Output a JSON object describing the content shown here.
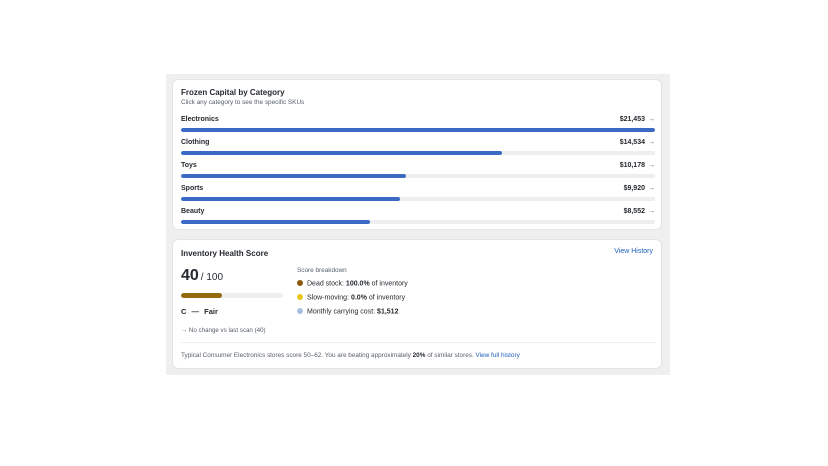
{
  "frozen": {
    "title": "Frozen Capital by Category",
    "subtitle": "Click any category to see the specific SKUs",
    "arrow": "→",
    "accent_color": "#3b6ac4",
    "categories": [
      {
        "name": "Electronics",
        "value": "$21,453",
        "amount": 21453
      },
      {
        "name": "Clothing",
        "value": "$14,534",
        "amount": 14534
      },
      {
        "name": "Toys",
        "value": "$10,178",
        "amount": 10178
      },
      {
        "name": "Sports",
        "value": "$9,920",
        "amount": 9920
      },
      {
        "name": "Beauty",
        "value": "$8,552",
        "amount": 8552
      }
    ]
  },
  "health": {
    "title": "Inventory Health Score",
    "view_history": "View History",
    "score": "40",
    "score_max": "/ 100",
    "score_fraction": 0.4,
    "score_color": "#946a0b",
    "grade": "C",
    "grade_sep": "—",
    "grade_label": "Fair",
    "no_change": "→ No change vs last scan (40)",
    "breakdown_title": "Score breakdown",
    "breakdown": [
      {
        "label": "Dead stock:",
        "value": "100.0%",
        "suffix": "of inventory",
        "color": "#8a5a0a"
      },
      {
        "label": "Slow-moving:",
        "value": "0.0%",
        "suffix": "of inventory",
        "color": "#e6c619"
      },
      {
        "label": "Monthly carrying cost:",
        "value": "$1,512",
        "suffix": "",
        "color": "#a9bfe0"
      }
    ],
    "footer_prefix": "Typical Consumer Electronics stores score 50–62. You are beating approximately",
    "footer_pct": "20%",
    "footer_suffix": "of similar stores.",
    "footer_link": "View full history"
  }
}
